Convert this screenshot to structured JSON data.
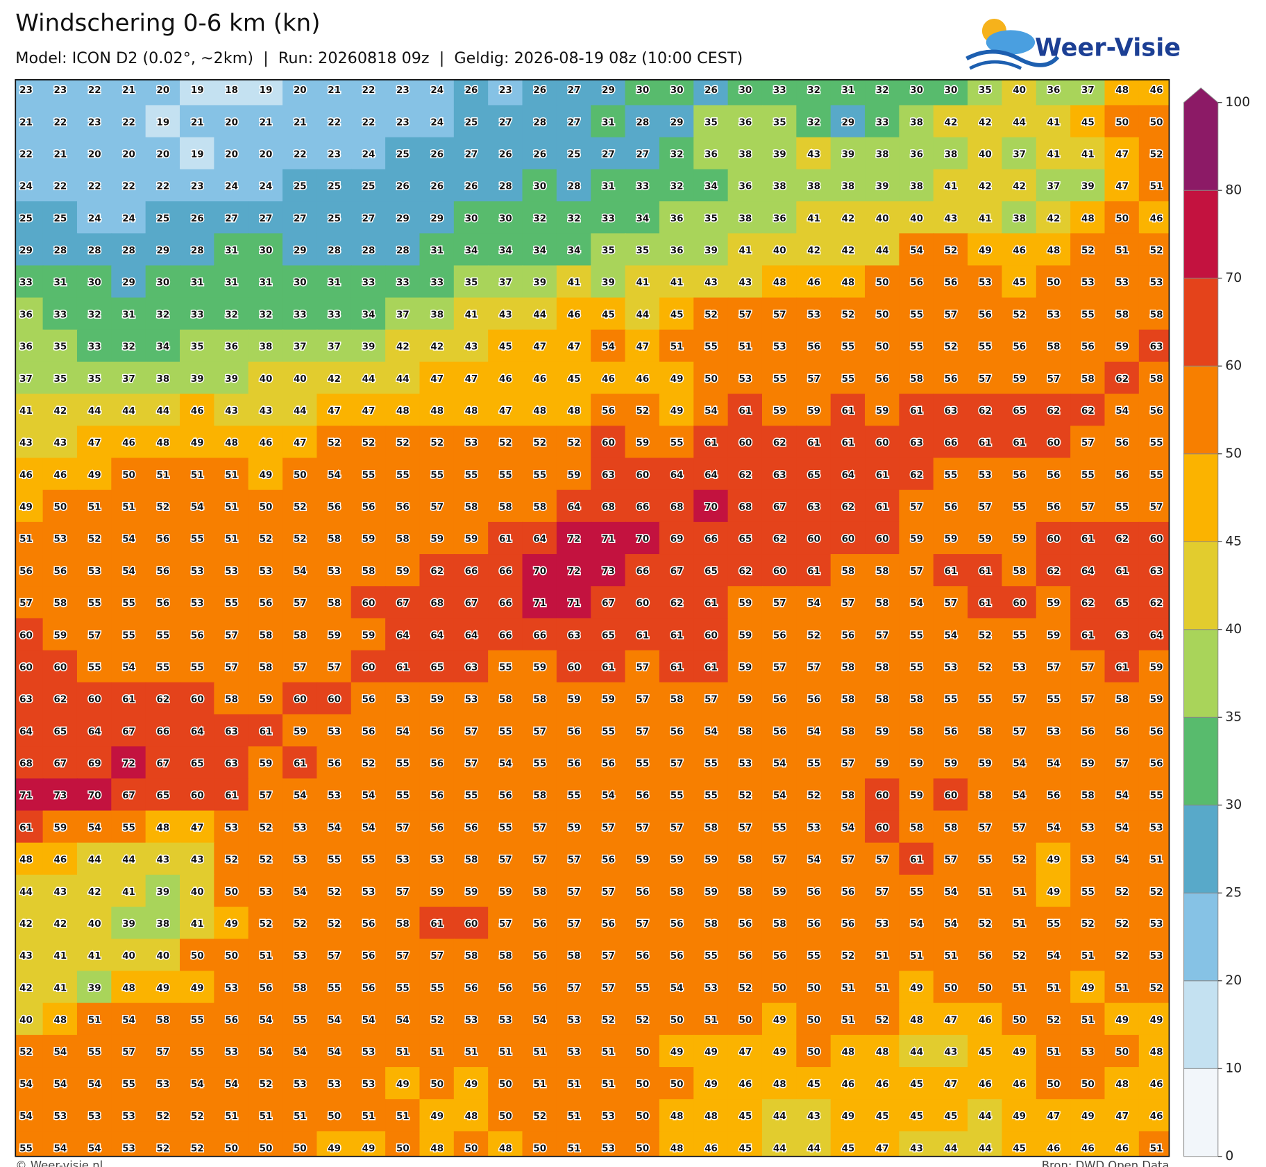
{
  "header": {
    "title": "Windschering 0-6 km (kn)",
    "subtitle": "Model: ICON D2 (0.02°, ~2km)  |  Run: 20260818 09z  |  Geldig: 2026-08-19 08z (10:00 CEST)"
  },
  "logo": {
    "text": "Weer-Visie"
  },
  "grid": {
    "rows": [
      [
        23,
        23,
        22,
        21,
        20,
        19,
        18,
        19,
        20,
        21,
        22,
        23,
        24,
        26,
        23,
        26,
        27,
        29,
        30,
        30,
        26,
        30,
        33,
        32,
        31,
        32,
        30,
        30,
        35,
        40,
        36,
        37,
        48,
        46
      ],
      [
        21,
        22,
        23,
        22,
        19,
        21,
        20,
        21,
        21,
        22,
        22,
        23,
        24,
        25,
        27,
        28,
        27,
        31,
        28,
        29,
        35,
        36,
        35,
        32,
        29,
        33,
        38,
        42,
        42,
        44,
        41,
        45,
        50,
        50
      ],
      [
        22,
        21,
        20,
        20,
        20,
        19,
        20,
        20,
        22,
        23,
        24,
        25,
        26,
        27,
        26,
        26,
        25,
        27,
        27,
        32,
        36,
        38,
        39,
        43,
        39,
        38,
        36,
        38,
        40,
        37,
        41,
        41,
        47,
        52
      ],
      [
        24,
        22,
        22,
        22,
        22,
        23,
        24,
        24,
        25,
        25,
        25,
        26,
        26,
        26,
        28,
        30,
        28,
        31,
        33,
        32,
        34,
        36,
        38,
        38,
        38,
        39,
        38,
        41,
        42,
        42,
        37,
        39,
        47,
        51
      ],
      [
        25,
        25,
        24,
        24,
        25,
        26,
        27,
        27,
        27,
        25,
        27,
        29,
        29,
        30,
        30,
        32,
        32,
        33,
        34,
        36,
        35,
        38,
        36,
        41,
        42,
        40,
        40,
        43,
        41,
        38,
        42,
        48,
        50,
        46
      ],
      [
        29,
        28,
        28,
        28,
        29,
        28,
        31,
        30,
        29,
        28,
        28,
        28,
        31,
        34,
        34,
        34,
        34,
        35,
        35,
        36,
        39,
        41,
        40,
        42,
        42,
        44,
        54,
        52,
        49,
        46,
        48,
        52,
        51,
        52
      ],
      [
        33,
        31,
        30,
        29,
        30,
        31,
        31,
        31,
        30,
        31,
        33,
        33,
        33,
        35,
        37,
        39,
        41,
        39,
        41,
        41,
        43,
        43,
        48,
        46,
        48,
        50,
        56,
        56,
        53,
        45,
        50,
        53,
        53,
        53
      ],
      [
        36,
        33,
        32,
        31,
        32,
        33,
        32,
        32,
        33,
        33,
        34,
        37,
        38,
        41,
        43,
        44,
        46,
        45,
        44,
        45,
        52,
        57,
        57,
        53,
        52,
        50,
        55,
        57,
        56,
        52,
        53,
        55,
        58,
        58
      ],
      [
        36,
        35,
        33,
        32,
        34,
        35,
        36,
        38,
        37,
        37,
        39,
        42,
        42,
        43,
        45,
        47,
        47,
        54,
        47,
        51,
        55,
        51,
        53,
        56,
        55,
        50,
        55,
        52,
        55,
        56,
        58,
        56,
        59,
        63
      ],
      [
        37,
        35,
        35,
        37,
        38,
        39,
        39,
        40,
        40,
        42,
        44,
        44,
        47,
        47,
        46,
        46,
        45,
        46,
        46,
        49,
        50,
        53,
        55,
        57,
        55,
        56,
        58,
        56,
        57,
        59,
        57,
        58,
        62,
        58
      ],
      [
        41,
        42,
        44,
        44,
        44,
        46,
        43,
        43,
        44,
        47,
        47,
        48,
        48,
        48,
        47,
        48,
        48,
        56,
        52,
        49,
        54,
        61,
        59,
        59,
        61,
        59,
        61,
        63,
        62,
        65,
        62,
        62,
        54,
        56
      ],
      [
        43,
        43,
        47,
        46,
        48,
        49,
        48,
        46,
        47,
        52,
        52,
        52,
        52,
        53,
        52,
        52,
        52,
        60,
        59,
        55,
        61,
        60,
        62,
        61,
        61,
        60,
        63,
        66,
        61,
        61,
        60,
        57,
        56,
        55
      ],
      [
        46,
        46,
        49,
        50,
        51,
        51,
        51,
        49,
        50,
        54,
        55,
        55,
        55,
        55,
        55,
        55,
        59,
        63,
        60,
        64,
        64,
        62,
        63,
        65,
        64,
        61,
        62,
        55,
        53,
        56,
        56,
        55,
        56,
        55
      ],
      [
        49,
        50,
        51,
        51,
        52,
        54,
        51,
        50,
        52,
        56,
        56,
        56,
        57,
        58,
        58,
        58,
        64,
        68,
        66,
        68,
        70,
        68,
        67,
        63,
        62,
        61,
        57,
        56,
        57,
        55,
        56,
        57,
        55,
        57
      ],
      [
        51,
        53,
        52,
        54,
        56,
        55,
        51,
        52,
        52,
        58,
        59,
        58,
        59,
        59,
        61,
        64,
        72,
        71,
        70,
        69,
        66,
        65,
        62,
        60,
        60,
        60,
        59,
        59,
        59,
        59,
        60,
        61,
        62,
        60
      ],
      [
        56,
        56,
        53,
        54,
        56,
        53,
        53,
        53,
        54,
        53,
        58,
        59,
        62,
        66,
        66,
        70,
        72,
        73,
        66,
        67,
        65,
        62,
        60,
        61,
        58,
        58,
        57,
        61,
        61,
        58,
        62,
        64,
        61,
        63
      ],
      [
        57,
        58,
        55,
        55,
        56,
        53,
        55,
        56,
        57,
        58,
        60,
        67,
        68,
        67,
        66,
        71,
        71,
        67,
        60,
        62,
        61,
        59,
        57,
        54,
        57,
        58,
        54,
        57,
        61,
        60,
        59,
        62,
        65,
        62
      ],
      [
        60,
        59,
        57,
        55,
        55,
        56,
        57,
        58,
        58,
        59,
        59,
        64,
        64,
        64,
        66,
        66,
        63,
        65,
        61,
        61,
        60,
        59,
        56,
        52,
        56,
        57,
        55,
        54,
        52,
        55,
        59,
        61,
        63,
        64
      ],
      [
        60,
        60,
        55,
        54,
        55,
        55,
        57,
        58,
        57,
        57,
        60,
        61,
        65,
        63,
        55,
        59,
        60,
        61,
        57,
        61,
        61,
        59,
        57,
        57,
        58,
        58,
        55,
        53,
        52,
        53,
        57,
        57,
        61,
        59
      ],
      [
        63,
        62,
        60,
        61,
        62,
        60,
        58,
        59,
        60,
        60,
        56,
        53,
        59,
        53,
        58,
        58,
        59,
        59,
        57,
        58,
        57,
        59,
        56,
        56,
        58,
        58,
        58,
        55,
        55,
        57,
        55,
        57,
        58,
        59
      ],
      [
        64,
        65,
        64,
        67,
        66,
        64,
        63,
        61,
        59,
        53,
        56,
        54,
        56,
        57,
        55,
        57,
        56,
        55,
        57,
        56,
        54,
        58,
        56,
        54,
        58,
        59,
        58,
        56,
        58,
        57,
        53,
        56,
        56,
        56
      ],
      [
        68,
        67,
        69,
        72,
        67,
        65,
        63,
        59,
        61,
        56,
        52,
        55,
        56,
        57,
        54,
        55,
        56,
        56,
        55,
        57,
        55,
        53,
        54,
        55,
        57,
        59,
        59,
        59,
        59,
        54,
        54,
        59,
        57,
        56
      ],
      [
        71,
        73,
        70,
        67,
        65,
        60,
        61,
        57,
        54,
        53,
        54,
        55,
        56,
        55,
        56,
        58,
        55,
        54,
        56,
        55,
        55,
        52,
        54,
        52,
        58,
        60,
        59,
        60,
        58,
        54,
        56,
        58,
        54,
        55
      ],
      [
        61,
        59,
        54,
        55,
        48,
        47,
        53,
        52,
        53,
        54,
        54,
        57,
        56,
        56,
        55,
        57,
        59,
        57,
        57,
        57,
        58,
        57,
        55,
        53,
        54,
        60,
        58,
        58,
        57,
        57,
        54,
        53,
        54,
        53
      ],
      [
        48,
        46,
        44,
        44,
        43,
        43,
        52,
        52,
        53,
        55,
        55,
        53,
        53,
        58,
        57,
        57,
        57,
        56,
        59,
        59,
        59,
        58,
        57,
        54,
        57,
        57,
        61,
        57,
        55,
        52,
        49,
        53,
        54,
        51
      ],
      [
        44,
        43,
        42,
        41,
        39,
        40,
        50,
        53,
        54,
        52,
        53,
        57,
        59,
        59,
        59,
        58,
        57,
        57,
        56,
        58,
        59,
        58,
        59,
        56,
        56,
        57,
        55,
        54,
        51,
        51,
        49,
        55,
        52,
        52
      ],
      [
        42,
        42,
        40,
        39,
        38,
        41,
        49,
        52,
        52,
        52,
        56,
        58,
        61,
        60,
        57,
        56,
        57,
        56,
        57,
        56,
        58,
        56,
        58,
        56,
        56,
        53,
        54,
        54,
        52,
        51,
        55,
        52,
        52,
        53
      ],
      [
        43,
        41,
        41,
        40,
        40,
        50,
        50,
        51,
        53,
        57,
        56,
        57,
        57,
        58,
        58,
        56,
        58,
        57,
        56,
        56,
        55,
        56,
        56,
        55,
        52,
        51,
        51,
        51,
        56,
        52,
        54,
        51,
        52,
        53
      ],
      [
        42,
        41,
        39,
        48,
        49,
        49,
        53,
        56,
        58,
        55,
        56,
        55,
        55,
        56,
        56,
        56,
        57,
        57,
        55,
        54,
        53,
        52,
        50,
        50,
        51,
        51,
        49,
        50,
        50,
        51,
        51,
        49,
        51,
        52
      ],
      [
        40,
        48,
        51,
        54,
        58,
        55,
        56,
        54,
        55,
        54,
        54,
        54,
        52,
        53,
        53,
        54,
        53,
        52,
        52,
        50,
        51,
        50,
        49,
        50,
        51,
        52,
        48,
        47,
        46,
        50,
        52,
        51,
        49,
        49
      ],
      [
        52,
        54,
        55,
        57,
        57,
        55,
        53,
        54,
        54,
        54,
        53,
        51,
        51,
        51,
        51,
        51,
        53,
        51,
        50,
        49,
        49,
        47,
        49,
        50,
        48,
        48,
        44,
        43,
        45,
        49,
        51,
        53,
        50,
        48
      ],
      [
        54,
        54,
        54,
        55,
        53,
        54,
        54,
        52,
        53,
        53,
        53,
        49,
        50,
        49,
        50,
        51,
        51,
        51,
        50,
        50,
        49,
        46,
        48,
        45,
        46,
        46,
        45,
        47,
        46,
        46,
        50,
        50,
        48,
        46
      ],
      [
        54,
        53,
        53,
        53,
        52,
        52,
        51,
        51,
        51,
        50,
        51,
        51,
        49,
        48,
        50,
        52,
        51,
        53,
        50,
        48,
        48,
        45,
        44,
        43,
        49,
        45,
        45,
        45,
        44,
        49,
        47,
        49,
        47,
        46
      ],
      [
        55,
        54,
        54,
        53,
        52,
        52,
        50,
        50,
        50,
        49,
        49,
        50,
        48,
        50,
        48,
        50,
        51,
        53,
        50,
        48,
        46,
        45,
        44,
        44,
        45,
        47,
        43,
        44,
        44,
        45,
        46,
        46,
        46,
        51
      ]
    ]
  },
  "colorbar": {
    "levels": [
      0,
      10,
      20,
      25,
      30,
      35,
      40,
      45,
      50,
      60,
      70,
      80,
      100
    ],
    "colors": [
      "#f2f6fa",
      "#c4e1f1",
      "#86c2e5",
      "#58a9c9",
      "#58bb6d",
      "#a9d45a",
      "#e2cc2e",
      "#fbb300",
      "#f77f00",
      "#e4431b",
      "#c3123f",
      "#8c1a66"
    ]
  },
  "footer": {
    "left": "© Weer-visie.nl",
    "right": "Bron: DWD Open Data"
  }
}
